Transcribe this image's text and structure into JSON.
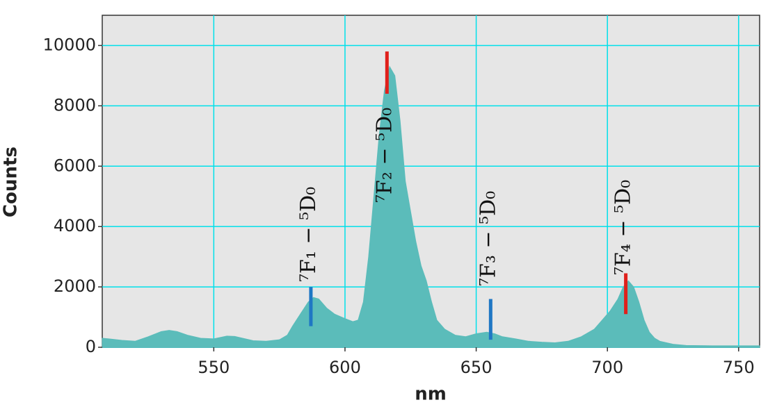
{
  "chart_data": {
    "type": "area",
    "xlabel": "nm",
    "ylabel": "Counts",
    "x": [
      507.5,
      510,
      515,
      520,
      525,
      530,
      533,
      536,
      540,
      545,
      550,
      555,
      558,
      562,
      565,
      570,
      575,
      578,
      580,
      583,
      586,
      588,
      590,
      593,
      596,
      600,
      603,
      605,
      607,
      609,
      611,
      613,
      615,
      617,
      619,
      621,
      623,
      625,
      627,
      629,
      631,
      633,
      635,
      638,
      642,
      646,
      650,
      654,
      657,
      660,
      665,
      670,
      675,
      680,
      685,
      690,
      695,
      698,
      701,
      704,
      706,
      708,
      710,
      712,
      714,
      716,
      718,
      720,
      725,
      730,
      740,
      750,
      758
    ],
    "series": [
      {
        "color": "#5bbcba",
        "values": [
          300,
          280,
          230,
          200,
          350,
          520,
          560,
          520,
          400,
          300,
          280,
          370,
          360,
          280,
          220,
          200,
          250,
          400,
          700,
          1100,
          1500,
          1650,
          1600,
          1300,
          1100,
          950,
          850,
          900,
          1500,
          3000,
          5000,
          7000,
          8500,
          9300,
          9000,
          7500,
          5500,
          4500,
          3500,
          2700,
          2200,
          1500,
          900,
          600,
          400,
          350,
          450,
          500,
          450,
          350,
          280,
          200,
          170,
          150,
          200,
          350,
          600,
          900,
          1200,
          1600,
          2000,
          2200,
          2000,
          1500,
          900,
          500,
          300,
          200,
          100,
          60,
          50,
          50,
          50
        ]
      }
    ],
    "xlim": [
      507.5,
      758
    ],
    "ylim": [
      0,
      11000
    ],
    "xticks": [
      550,
      600,
      650,
      700,
      750
    ],
    "yticks": [
      0,
      2000,
      4000,
      6000,
      8000,
      10000
    ],
    "grid": true,
    "markers": [
      {
        "x": 587,
        "ymin": 700,
        "ymax": 2000,
        "color": "#1f77c4",
        "label": "⁷F₁ − ⁵D₀"
      },
      {
        "x": 616,
        "ymin": 8400,
        "ymax": 9800,
        "color": "#e0201b",
        "label": "⁷F₂ − ⁵D₀"
      },
      {
        "x": 655.5,
        "ymin": 250,
        "ymax": 1600,
        "color": "#1f77c4",
        "label": "⁷F₃ − ⁵D₀"
      },
      {
        "x": 707,
        "ymin": 1100,
        "ymax": 2450,
        "color": "#e0201b",
        "label": "⁷F₄ − ⁵D₀"
      }
    ]
  }
}
